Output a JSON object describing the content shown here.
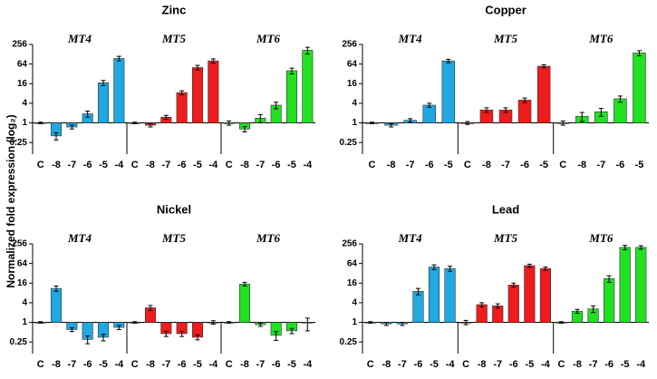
{
  "ylabel": "Normalized fold expression (log₂)",
  "chart_data": [
    {
      "type": "bar",
      "title": "Zinc",
      "log_scale": true,
      "ylim": [
        0.11,
        256
      ],
      "yticks": [
        0.25,
        1,
        4,
        16,
        64,
        256
      ],
      "series": [
        {
          "name": "MT4",
          "color": "#22a7e0",
          "categories": [
            "C",
            "-8",
            "-7",
            "-6",
            "-5",
            "-4"
          ],
          "values": [
            1,
            0.4,
            0.75,
            1.9,
            17,
            95
          ],
          "errors": [
            0.05,
            0.1,
            0.1,
            0.4,
            3,
            15
          ]
        },
        {
          "name": "MT5",
          "color": "#ee1c1c",
          "categories": [
            "C",
            "-8",
            "-7",
            "-6",
            "-5",
            "-4"
          ],
          "values": [
            1,
            0.85,
            1.5,
            8.5,
            50,
            80
          ],
          "errors": [
            0.05,
            0.1,
            0.2,
            1.2,
            8,
            12
          ]
        },
        {
          "name": "MT6",
          "color": "#22e022",
          "categories": [
            "C",
            "-8",
            "-7",
            "-6",
            "-5",
            "-4"
          ],
          "values": [
            1,
            0.65,
            1.4,
            3.5,
            40,
            170
          ],
          "errors": [
            0.15,
            0.12,
            0.4,
            0.8,
            8,
            40
          ]
        }
      ]
    },
    {
      "type": "bar",
      "title": "Copper",
      "log_scale": true,
      "ylim": [
        0.11,
        256
      ],
      "yticks": [
        0.25,
        1,
        4,
        16,
        64,
        256
      ],
      "series": [
        {
          "name": "MT4",
          "color": "#22a7e0",
          "categories": [
            "C",
            "-8",
            "-7",
            "-6",
            "-5"
          ],
          "values": [
            1,
            0.85,
            1.2,
            3.5,
            80
          ],
          "errors": [
            0.05,
            0.1,
            0.15,
            0.5,
            10
          ]
        },
        {
          "name": "MT5",
          "color": "#ee1c1c",
          "categories": [
            "C",
            "-8",
            "-7",
            "-6",
            "-5"
          ],
          "values": [
            1,
            2.5,
            2.5,
            5,
            55
          ],
          "errors": [
            0.1,
            0.4,
            0.4,
            0.8,
            6
          ]
        },
        {
          "name": "MT6",
          "color": "#22e022",
          "categories": [
            "C",
            "-8",
            "-7",
            "-6",
            "-5"
          ],
          "values": [
            1,
            1.6,
            2.2,
            5.5,
            140
          ],
          "errors": [
            0.15,
            0.5,
            0.6,
            1.2,
            25
          ]
        }
      ]
    },
    {
      "type": "bar",
      "title": "Nickel",
      "log_scale": true,
      "ylim": [
        0.11,
        256
      ],
      "yticks": [
        0.25,
        1,
        4,
        16,
        64,
        256
      ],
      "series": [
        {
          "name": "MT4",
          "color": "#22a7e0",
          "categories": [
            "C",
            "-8",
            "-7",
            "-6",
            "-5",
            "-4"
          ],
          "values": [
            1,
            11,
            0.6,
            0.3,
            0.35,
            0.7
          ],
          "errors": [
            0.05,
            2,
            0.08,
            0.08,
            0.08,
            0.1
          ]
        },
        {
          "name": "MT5",
          "color": "#ee1c1c",
          "categories": [
            "C",
            "-8",
            "-7",
            "-6",
            "-5",
            "-4"
          ],
          "values": [
            1,
            2.8,
            0.45,
            0.45,
            0.35,
            1
          ],
          "errors": [
            0.05,
            0.5,
            0.08,
            0.08,
            0.06,
            0.12
          ]
        },
        {
          "name": "MT6",
          "color": "#22e022",
          "categories": [
            "C",
            "-8",
            "-7",
            "-6",
            "-5",
            "-4"
          ],
          "values": [
            1,
            15,
            0.85,
            0.4,
            0.55,
            0.95
          ],
          "errors": [
            0.05,
            2,
            0.1,
            0.12,
            0.1,
            0.4
          ]
        }
      ]
    },
    {
      "type": "bar",
      "title": "Lead",
      "log_scale": true,
      "ylim": [
        0.11,
        256
      ],
      "yticks": [
        0.25,
        1,
        4,
        16,
        64,
        256
      ],
      "series": [
        {
          "name": "MT4",
          "color": "#22a7e0",
          "categories": [
            "C",
            "-8",
            "-7",
            "-6",
            "-5",
            "-4"
          ],
          "values": [
            1,
            0.9,
            0.9,
            9,
            50,
            45
          ],
          "errors": [
            0.05,
            0.1,
            0.1,
            2,
            8,
            8
          ]
        },
        {
          "name": "MT5",
          "color": "#ee1c1c",
          "categories": [
            "C",
            "-8",
            "-7",
            "-6",
            "-5",
            "-4"
          ],
          "values": [
            1,
            3.5,
            3.2,
            14,
            55,
            45
          ],
          "errors": [
            0.15,
            0.5,
            0.5,
            2,
            6,
            5
          ]
        },
        {
          "name": "MT6",
          "color": "#22e022",
          "categories": [
            "C",
            "-8",
            "-7",
            "-6",
            "-5",
            "-4"
          ],
          "values": [
            1,
            2.2,
            2.6,
            22,
            200,
            200
          ],
          "errors": [
            0.05,
            0.3,
            0.6,
            5,
            30,
            25
          ]
        }
      ]
    }
  ]
}
